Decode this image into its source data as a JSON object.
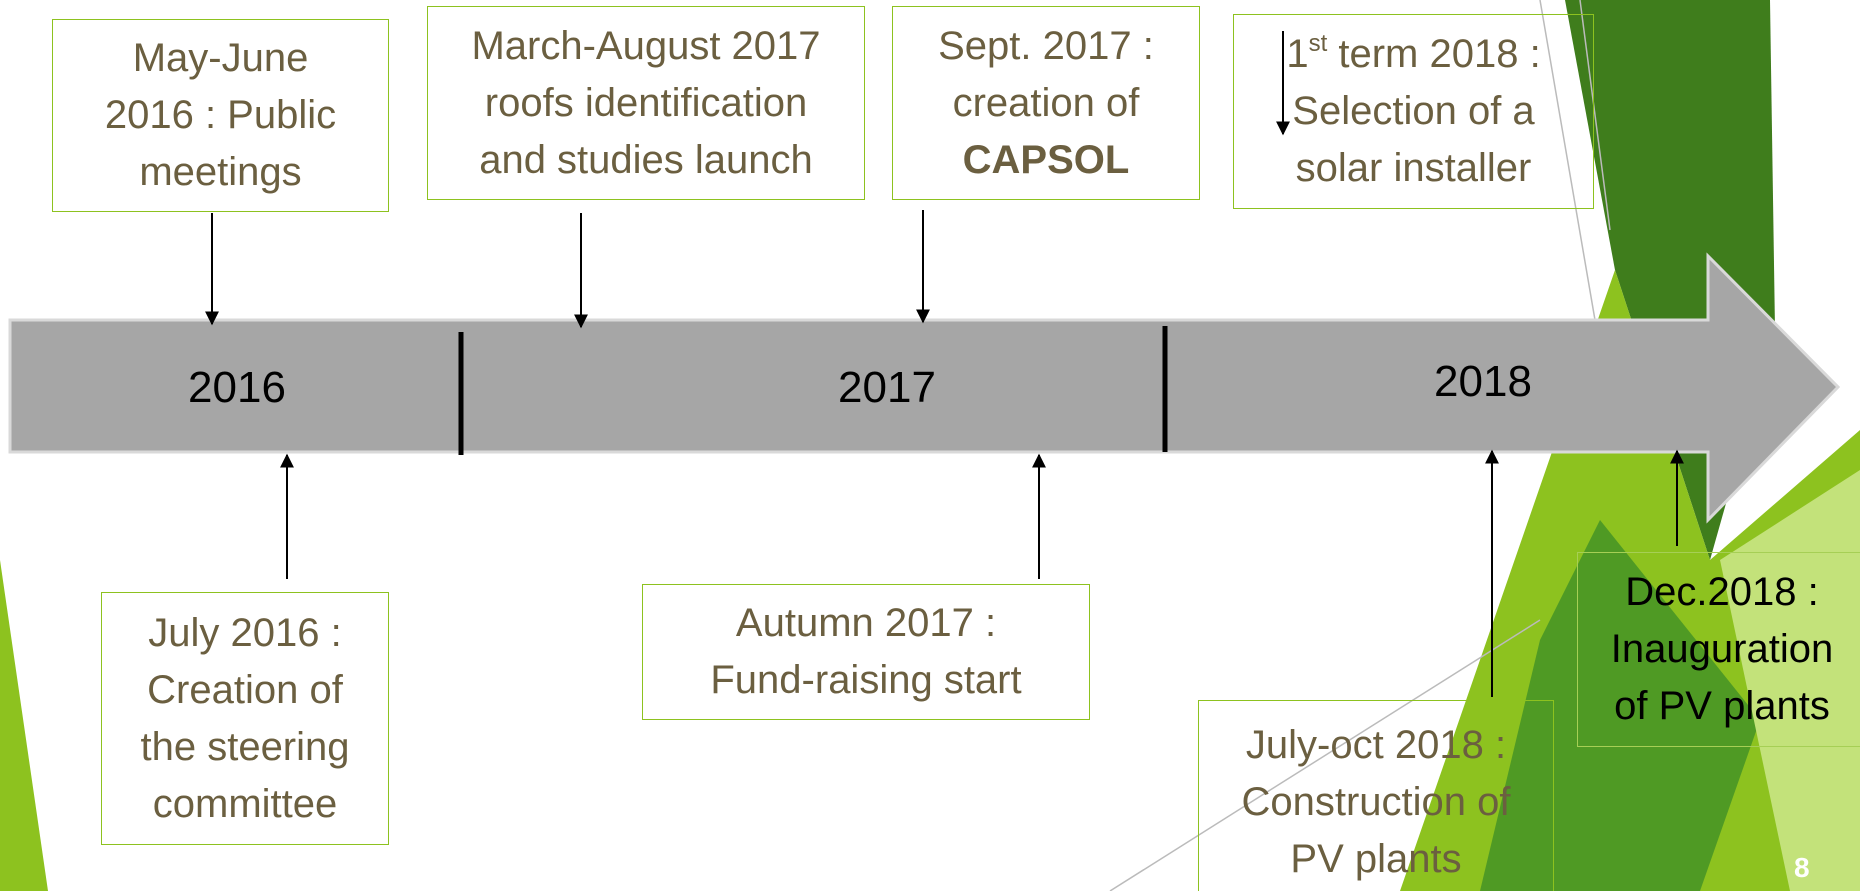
{
  "years": [
    "2016",
    "2017",
    "2018"
  ],
  "events": [
    {
      "lines": [
        "May-June",
        "2016 : Public",
        "meetings"
      ]
    },
    {
      "lines": [
        "March-August 2017",
        "roofs identification",
        "and studies launch"
      ]
    },
    {
      "lines": [
        "Sept. 2017 :",
        "creation of",
        "CAPSOL"
      ]
    },
    {
      "number": "1",
      "superscript": "st",
      "lines": [
        "term 2018 :",
        "Selection of a",
        "solar installer"
      ]
    },
    {
      "lines": [
        "July 2016 :",
        "Creation of",
        "the steering",
        "committee"
      ]
    },
    {
      "lines": [
        "Autumn 2017 :",
        "Fund-raising start"
      ]
    },
    {
      "lines": [
        "July-oct 2018 :",
        "Construction of",
        "PV plants"
      ]
    },
    {
      "lines": [
        "Dec.2018 :",
        "Inauguration",
        "of PV plants"
      ]
    }
  ],
  "page_number": "8"
}
